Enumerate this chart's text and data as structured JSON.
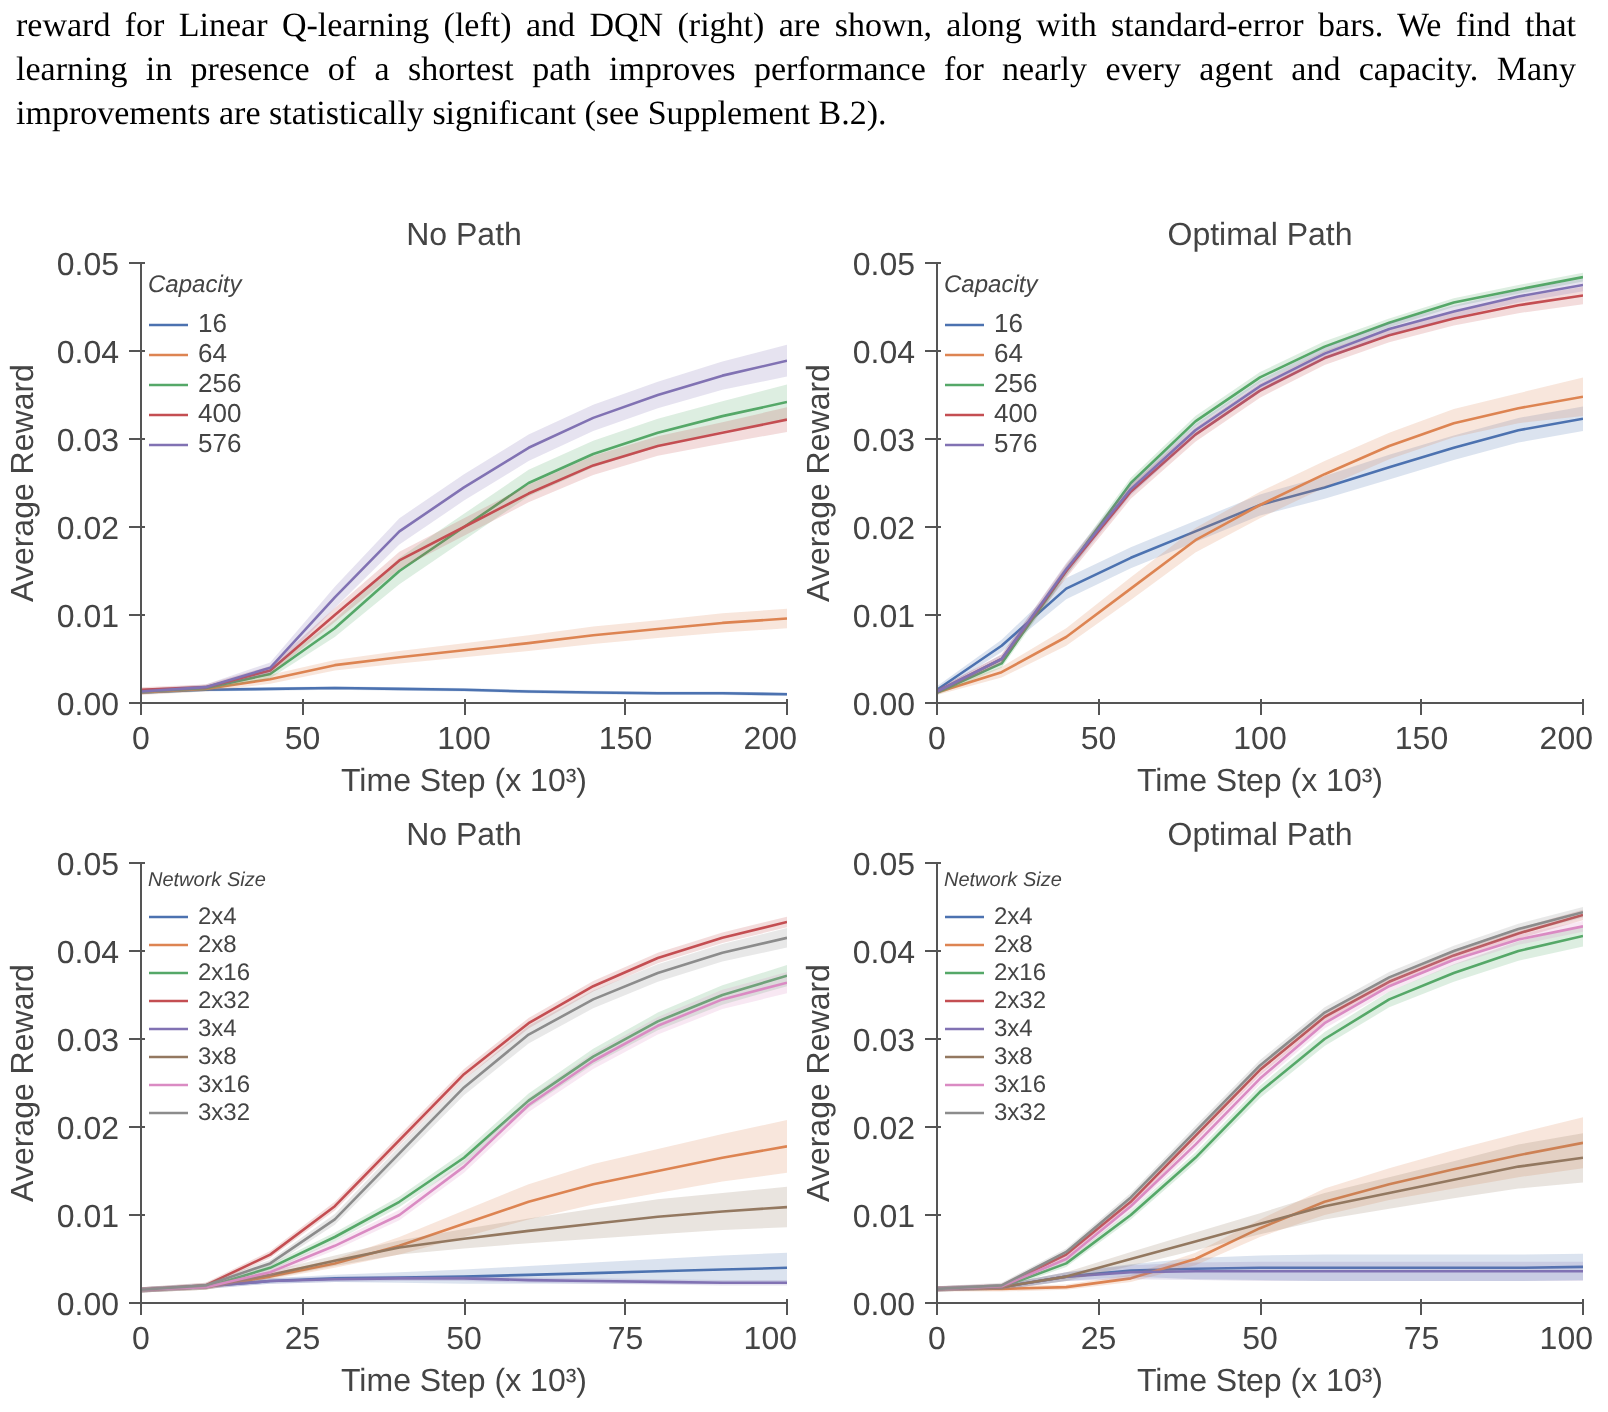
{
  "chart_data": [
    {
      "type": "line",
      "title": "No Path",
      "xlabel": "Time Step (x 10³)",
      "ylabel": "Average Reward",
      "legend_title": "Capacity",
      "legend": "top left",
      "grid": false,
      "annotations": [
        "reward for Linear Q-learning (left) and DQN (right) are shown, along with standard-error bars. We find that learning in presence of a shortest path improves performance for nearly every agent and capacity. Many improvements are statistically significant (see Supplement B.2)."
      ],
      "xlim": [
        0,
        200
      ],
      "ylim": [
        0,
        0.05
      ],
      "xticks": [
        0,
        50,
        100,
        150,
        200
      ],
      "yticks": [
        {
          "value": 0,
          "label": "0.00"
        },
        {
          "value": 0.01,
          "label": "0.01"
        },
        {
          "value": 0.02,
          "label": "0.02"
        },
        {
          "value": 0.03,
          "label": "0.03"
        },
        {
          "value": 0.04,
          "label": "0.04"
        },
        {
          "value": 0.05,
          "label": "0.05"
        }
      ],
      "x": [
        0,
        20,
        40,
        60,
        80,
        100,
        120,
        140,
        160,
        180,
        200
      ],
      "series": [
        {
          "name": "16",
          "color": "#4c72b0",
          "values": [
            0.0012,
            0.0015,
            0.0016,
            0.0017,
            0.0016,
            0.0015,
            0.0013,
            0.0012,
            0.0011,
            0.0011,
            0.001
          ],
          "lower": [
            0.001,
            0.0013,
            0.0014,
            0.0015,
            0.0014,
            0.0013,
            0.0011,
            0.001,
            0.0009,
            0.0009,
            0.0008
          ],
          "upper": [
            0.0014,
            0.0017,
            0.0018,
            0.0019,
            0.0018,
            0.0017,
            0.0015,
            0.0014,
            0.0013,
            0.0013,
            0.0012
          ]
        },
        {
          "name": "64",
          "color": "#dd8452",
          "values": [
            0.0012,
            0.0016,
            0.0027,
            0.0043,
            0.0052,
            0.006,
            0.0068,
            0.0077,
            0.0084,
            0.0091,
            0.0096
          ],
          "lower": [
            0.0009,
            0.0013,
            0.0022,
            0.0037,
            0.0045,
            0.0052,
            0.0059,
            0.0067,
            0.0074,
            0.008,
            0.0085
          ],
          "upper": [
            0.0015,
            0.0019,
            0.0032,
            0.0049,
            0.0059,
            0.0068,
            0.0077,
            0.0087,
            0.0094,
            0.0102,
            0.0107
          ]
        },
        {
          "name": "256",
          "color": "#55a868",
          "values": [
            0.0013,
            0.0017,
            0.0033,
            0.0085,
            0.015,
            0.02,
            0.025,
            0.0283,
            0.0307,
            0.0326,
            0.0342
          ],
          "lower": [
            0.001,
            0.0014,
            0.0028,
            0.0075,
            0.0135,
            0.0185,
            0.0235,
            0.0268,
            0.0291,
            0.0309,
            0.0322
          ],
          "upper": [
            0.0016,
            0.002,
            0.0038,
            0.0095,
            0.0165,
            0.0215,
            0.0265,
            0.0298,
            0.0323,
            0.0343,
            0.0362
          ]
        },
        {
          "name": "400",
          "color": "#c44e52",
          "values": [
            0.0015,
            0.0018,
            0.0037,
            0.01,
            0.0162,
            0.02,
            0.0238,
            0.027,
            0.0292,
            0.0307,
            0.0322
          ],
          "lower": [
            0.0012,
            0.0015,
            0.0032,
            0.0092,
            0.0152,
            0.019,
            0.0228,
            0.0259,
            0.0281,
            0.0295,
            0.0308
          ],
          "upper": [
            0.0018,
            0.0021,
            0.0042,
            0.0108,
            0.0172,
            0.021,
            0.0248,
            0.0281,
            0.0303,
            0.0319,
            0.0336
          ]
        },
        {
          "name": "576",
          "color": "#8172b3",
          "values": [
            0.0013,
            0.0018,
            0.004,
            0.012,
            0.0195,
            0.0245,
            0.029,
            0.0324,
            0.035,
            0.0372,
            0.0389
          ],
          "lower": [
            0.001,
            0.0015,
            0.0034,
            0.0108,
            0.018,
            0.023,
            0.0275,
            0.0309,
            0.0335,
            0.0356,
            0.0371
          ],
          "upper": [
            0.0016,
            0.0021,
            0.0046,
            0.0132,
            0.021,
            0.026,
            0.0305,
            0.0339,
            0.0365,
            0.0388,
            0.0407
          ]
        }
      ]
    },
    {
      "type": "line",
      "title": "Optimal Path",
      "xlabel": "Time Step (x 10³)",
      "ylabel": "Average Reward",
      "legend_title": "Capacity",
      "legend": "top left",
      "grid": false,
      "xlim": [
        0,
        200
      ],
      "ylim": [
        0,
        0.05
      ],
      "xticks": [
        0,
        50,
        100,
        150,
        200
      ],
      "yticks": [
        {
          "value": 0,
          "label": "0.00"
        },
        {
          "value": 0.01,
          "label": "0.01"
        },
        {
          "value": 0.02,
          "label": "0.02"
        },
        {
          "value": 0.03,
          "label": "0.03"
        },
        {
          "value": 0.04,
          "label": "0.04"
        },
        {
          "value": 0.05,
          "label": "0.05"
        }
      ],
      "x": [
        0,
        20,
        40,
        60,
        80,
        100,
        120,
        140,
        160,
        180,
        200
      ],
      "series": [
        {
          "name": "16",
          "color": "#4c72b0",
          "values": [
            0.0015,
            0.0065,
            0.013,
            0.0165,
            0.0195,
            0.0225,
            0.0245,
            0.0268,
            0.029,
            0.031,
            0.0323
          ],
          "lower": [
            0.0011,
            0.0058,
            0.0118,
            0.0153,
            0.0183,
            0.0213,
            0.0232,
            0.0254,
            0.0276,
            0.0296,
            0.0309
          ],
          "upper": [
            0.0019,
            0.0072,
            0.0142,
            0.0177,
            0.0207,
            0.0237,
            0.0258,
            0.0282,
            0.0304,
            0.0324,
            0.0337
          ]
        },
        {
          "name": "64",
          "color": "#dd8452",
          "values": [
            0.0012,
            0.0035,
            0.0075,
            0.013,
            0.0185,
            0.0225,
            0.026,
            0.0292,
            0.0318,
            0.0335,
            0.0348
          ],
          "lower": [
            0.0009,
            0.0029,
            0.0065,
            0.0117,
            0.0171,
            0.021,
            0.0245,
            0.0277,
            0.0302,
            0.0318,
            0.0326
          ],
          "upper": [
            0.0015,
            0.0041,
            0.0085,
            0.0143,
            0.0199,
            0.024,
            0.0275,
            0.0307,
            0.0334,
            0.0352,
            0.037
          ]
        },
        {
          "name": "256",
          "color": "#55a868",
          "values": [
            0.0012,
            0.0045,
            0.015,
            0.025,
            0.032,
            0.037,
            0.0405,
            0.0432,
            0.0455,
            0.047,
            0.0484
          ],
          "lower": [
            0.0009,
            0.004,
            0.0144,
            0.0244,
            0.0314,
            0.0364,
            0.0399,
            0.0427,
            0.045,
            0.0465,
            0.0479
          ],
          "upper": [
            0.0015,
            0.005,
            0.0156,
            0.0256,
            0.0326,
            0.0376,
            0.0411,
            0.0437,
            0.046,
            0.0475,
            0.0489
          ]
        },
        {
          "name": "400",
          "color": "#c44e52",
          "values": [
            0.0013,
            0.005,
            0.015,
            0.024,
            0.0305,
            0.0355,
            0.0392,
            0.0418,
            0.0437,
            0.0452,
            0.0463
          ],
          "lower": [
            0.001,
            0.0045,
            0.0142,
            0.0232,
            0.0297,
            0.0347,
            0.0384,
            0.041,
            0.0429,
            0.0443,
            0.0453
          ],
          "upper": [
            0.0016,
            0.0055,
            0.0158,
            0.0248,
            0.0313,
            0.0363,
            0.04,
            0.0426,
            0.0445,
            0.0461,
            0.0473
          ]
        },
        {
          "name": "576",
          "color": "#8172b3",
          "values": [
            0.0013,
            0.005,
            0.0152,
            0.0243,
            0.031,
            0.036,
            0.0397,
            0.0425,
            0.0445,
            0.0462,
            0.0475
          ],
          "lower": [
            0.001,
            0.0045,
            0.0145,
            0.0236,
            0.0303,
            0.0353,
            0.039,
            0.0418,
            0.0438,
            0.0455,
            0.0468
          ],
          "upper": [
            0.0016,
            0.0055,
            0.0159,
            0.025,
            0.0317,
            0.0367,
            0.0404,
            0.0432,
            0.0452,
            0.0469,
            0.0482
          ]
        }
      ]
    },
    {
      "type": "line",
      "title": "No Path",
      "xlabel": "Time Step (x 10³)",
      "ylabel": "Average Reward",
      "legend_title": "Network Size",
      "legend": "top left",
      "grid": false,
      "xlim": [
        0,
        100
      ],
      "ylim": [
        0,
        0.05
      ],
      "xticks": [
        0,
        25,
        50,
        75,
        100
      ],
      "yticks": [
        {
          "value": 0,
          "label": "0.00"
        },
        {
          "value": 0.01,
          "label": "0.01"
        },
        {
          "value": 0.02,
          "label": "0.02"
        },
        {
          "value": 0.03,
          "label": "0.03"
        },
        {
          "value": 0.04,
          "label": "0.04"
        },
        {
          "value": 0.05,
          "label": "0.05"
        }
      ],
      "x": [
        0,
        10,
        20,
        30,
        40,
        50,
        60,
        70,
        80,
        90,
        100
      ],
      "series": [
        {
          "name": "2x4",
          "color": "#4c72b0",
          "values": [
            0.0015,
            0.0019,
            0.0025,
            0.0028,
            0.0029,
            0.003,
            0.0032,
            0.0034,
            0.0036,
            0.0038,
            0.004
          ],
          "lower": [
            0.0012,
            0.0016,
            0.0022,
            0.0024,
            0.0023,
            0.0022,
            0.0022,
            0.0022,
            0.0022,
            0.0022,
            0.0023
          ],
          "upper": [
            0.0018,
            0.0022,
            0.0028,
            0.0032,
            0.0035,
            0.0038,
            0.0042,
            0.0046,
            0.005,
            0.0054,
            0.0057
          ]
        },
        {
          "name": "2x8",
          "color": "#dd8452",
          "values": [
            0.0015,
            0.0018,
            0.003,
            0.0045,
            0.0065,
            0.009,
            0.0115,
            0.0135,
            0.015,
            0.0165,
            0.0178
          ],
          "lower": [
            0.0012,
            0.0015,
            0.0027,
            0.004,
            0.0055,
            0.0075,
            0.0095,
            0.0112,
            0.0125,
            0.0138,
            0.0148
          ],
          "upper": [
            0.0018,
            0.0021,
            0.0033,
            0.005,
            0.0075,
            0.0105,
            0.0135,
            0.0158,
            0.0175,
            0.0192,
            0.0208
          ]
        },
        {
          "name": "2x16",
          "color": "#55a868",
          "values": [
            0.0015,
            0.0018,
            0.004,
            0.0075,
            0.0115,
            0.0165,
            0.023,
            0.028,
            0.032,
            0.035,
            0.0372
          ],
          "lower": [
            0.0012,
            0.0015,
            0.0036,
            0.007,
            0.0109,
            0.0158,
            0.0222,
            0.0271,
            0.031,
            0.0339,
            0.036
          ],
          "upper": [
            0.0018,
            0.0021,
            0.0044,
            0.008,
            0.0121,
            0.0172,
            0.0238,
            0.0289,
            0.033,
            0.0361,
            0.0384
          ]
        },
        {
          "name": "2x32",
          "color": "#c44e52",
          "values": [
            0.0015,
            0.002,
            0.0055,
            0.011,
            0.0185,
            0.026,
            0.0318,
            0.036,
            0.0392,
            0.0415,
            0.0433
          ],
          "lower": [
            0.0012,
            0.0017,
            0.0051,
            0.0105,
            0.0179,
            0.0254,
            0.0312,
            0.0354,
            0.0386,
            0.0409,
            0.0427
          ],
          "upper": [
            0.0018,
            0.0023,
            0.0059,
            0.0115,
            0.0191,
            0.0266,
            0.0324,
            0.0366,
            0.0398,
            0.0421,
            0.0439
          ]
        },
        {
          "name": "3x4",
          "color": "#8172b3",
          "values": [
            0.0015,
            0.0019,
            0.0025,
            0.0027,
            0.0028,
            0.0028,
            0.0026,
            0.0025,
            0.0024,
            0.0023,
            0.0023
          ],
          "lower": [
            0.0012,
            0.0016,
            0.0022,
            0.0024,
            0.0025,
            0.0025,
            0.0023,
            0.0022,
            0.0021,
            0.002,
            0.002
          ],
          "upper": [
            0.0018,
            0.0022,
            0.0028,
            0.003,
            0.0031,
            0.0031,
            0.0029,
            0.0028,
            0.0027,
            0.0026,
            0.0026
          ]
        },
        {
          "name": "3x8",
          "color": "#937860",
          "values": [
            0.0015,
            0.0018,
            0.0032,
            0.0048,
            0.0063,
            0.0073,
            0.0082,
            0.009,
            0.0098,
            0.0104,
            0.0109
          ],
          "lower": [
            0.0012,
            0.0015,
            0.0028,
            0.0042,
            0.0055,
            0.0062,
            0.0068,
            0.0073,
            0.0078,
            0.0083,
            0.0086
          ],
          "upper": [
            0.0018,
            0.0021,
            0.0036,
            0.0054,
            0.0071,
            0.0084,
            0.0096,
            0.0107,
            0.0118,
            0.0125,
            0.0132
          ]
        },
        {
          "name": "3x16",
          "color": "#da8bc3",
          "values": [
            0.0015,
            0.0018,
            0.0035,
            0.0065,
            0.01,
            0.0155,
            0.0225,
            0.0275,
            0.0315,
            0.0345,
            0.0364
          ],
          "lower": [
            0.0012,
            0.0015,
            0.0031,
            0.006,
            0.0094,
            0.0148,
            0.0217,
            0.0266,
            0.0305,
            0.0334,
            0.0352
          ],
          "upper": [
            0.0018,
            0.0021,
            0.0039,
            0.007,
            0.0106,
            0.0162,
            0.0233,
            0.0284,
            0.0325,
            0.0356,
            0.0376
          ]
        },
        {
          "name": "3x32",
          "color": "#8c8c8c",
          "values": [
            0.0015,
            0.002,
            0.0045,
            0.0095,
            0.017,
            0.0245,
            0.0305,
            0.0345,
            0.0375,
            0.0398,
            0.0415
          ],
          "lower": [
            0.0012,
            0.0017,
            0.0041,
            0.0089,
            0.0162,
            0.0236,
            0.0295,
            0.0335,
            0.0365,
            0.0388,
            0.0404
          ],
          "upper": [
            0.0018,
            0.0023,
            0.0049,
            0.0101,
            0.0178,
            0.0254,
            0.0315,
            0.0355,
            0.0385,
            0.0408,
            0.0426
          ]
        }
      ]
    },
    {
      "type": "line",
      "title": "Optimal Path",
      "xlabel": "Time Step (x 10³)",
      "ylabel": "Average Reward",
      "legend_title": "Network Size",
      "legend": "top left",
      "grid": false,
      "xlim": [
        0,
        100
      ],
      "ylim": [
        0,
        0.05
      ],
      "xticks": [
        0,
        25,
        50,
        75,
        100
      ],
      "yticks": [
        {
          "value": 0,
          "label": "0.00"
        },
        {
          "value": 0.01,
          "label": "0.01"
        },
        {
          "value": 0.02,
          "label": "0.02"
        },
        {
          "value": 0.03,
          "label": "0.03"
        },
        {
          "value": 0.04,
          "label": "0.04"
        },
        {
          "value": 0.05,
          "label": "0.05"
        }
      ],
      "x": [
        0,
        10,
        20,
        30,
        40,
        50,
        60,
        70,
        80,
        90,
        100
      ],
      "series": [
        {
          "name": "2x4",
          "color": "#4c72b0",
          "values": [
            0.0016,
            0.0018,
            0.003,
            0.0037,
            0.0039,
            0.004,
            0.004,
            0.004,
            0.004,
            0.004,
            0.0041
          ],
          "lower": [
            0.0013,
            0.0015,
            0.0025,
            0.003,
            0.0027,
            0.0026,
            0.0025,
            0.0025,
            0.0025,
            0.0025,
            0.0026
          ],
          "upper": [
            0.0019,
            0.0021,
            0.0035,
            0.0044,
            0.0051,
            0.0054,
            0.0055,
            0.0055,
            0.0055,
            0.0055,
            0.0056
          ]
        },
        {
          "name": "2x8",
          "color": "#dd8452",
          "values": [
            0.0016,
            0.0016,
            0.0018,
            0.0028,
            0.005,
            0.0085,
            0.0115,
            0.0135,
            0.0152,
            0.0168,
            0.0182
          ],
          "lower": [
            0.0013,
            0.0013,
            0.0015,
            0.0024,
            0.0043,
            0.0075,
            0.01,
            0.0117,
            0.013,
            0.0143,
            0.0153
          ],
          "upper": [
            0.0019,
            0.0019,
            0.0021,
            0.0032,
            0.0057,
            0.0095,
            0.013,
            0.0153,
            0.0174,
            0.0193,
            0.0211
          ]
        },
        {
          "name": "2x16",
          "color": "#55a868",
          "values": [
            0.0016,
            0.0018,
            0.0045,
            0.01,
            0.0165,
            0.024,
            0.03,
            0.0345,
            0.0375,
            0.04,
            0.0417
          ],
          "lower": [
            0.0013,
            0.0015,
            0.0041,
            0.0095,
            0.0159,
            0.0233,
            0.0292,
            0.0336,
            0.0365,
            0.0389,
            0.0405
          ],
          "upper": [
            0.0019,
            0.0021,
            0.0049,
            0.0105,
            0.0171,
            0.0247,
            0.0308,
            0.0354,
            0.0385,
            0.0411,
            0.0429
          ]
        },
        {
          "name": "2x32",
          "color": "#c44e52",
          "values": [
            0.0016,
            0.0019,
            0.0055,
            0.0115,
            0.019,
            0.0265,
            0.0325,
            0.0365,
            0.0395,
            0.042,
            0.0441
          ],
          "lower": [
            0.0013,
            0.0016,
            0.0051,
            0.011,
            0.0184,
            0.0259,
            0.0319,
            0.0359,
            0.0389,
            0.0414,
            0.0435
          ],
          "upper": [
            0.0019,
            0.0022,
            0.0059,
            0.012,
            0.0196,
            0.0271,
            0.0331,
            0.0371,
            0.0401,
            0.0426,
            0.0447
          ]
        },
        {
          "name": "3x4",
          "color": "#8172b3",
          "values": [
            0.0016,
            0.0018,
            0.003,
            0.0035,
            0.0036,
            0.0036,
            0.0036,
            0.0036,
            0.0036,
            0.0036,
            0.0036
          ],
          "lower": [
            0.0013,
            0.0015,
            0.0025,
            0.0027,
            0.0026,
            0.0025,
            0.0025,
            0.0025,
            0.0025,
            0.0025,
            0.0025
          ],
          "upper": [
            0.0019,
            0.0021,
            0.0035,
            0.0043,
            0.0046,
            0.0047,
            0.0047,
            0.0047,
            0.0047,
            0.0047,
            0.0047
          ]
        },
        {
          "name": "3x8",
          "color": "#937860",
          "values": [
            0.0016,
            0.0018,
            0.003,
            0.005,
            0.007,
            0.009,
            0.011,
            0.0125,
            0.014,
            0.0155,
            0.0165
          ],
          "lower": [
            0.0013,
            0.0015,
            0.0025,
            0.0042,
            0.006,
            0.0078,
            0.0095,
            0.0107,
            0.0119,
            0.013,
            0.0137
          ],
          "upper": [
            0.0019,
            0.0021,
            0.0035,
            0.0058,
            0.008,
            0.0102,
            0.0125,
            0.0143,
            0.0161,
            0.018,
            0.0193
          ]
        },
        {
          "name": "3x16",
          "color": "#da8bc3",
          "values": [
            0.0016,
            0.0019,
            0.005,
            0.011,
            0.018,
            0.0255,
            0.0318,
            0.036,
            0.039,
            0.0413,
            0.0428
          ],
          "lower": [
            0.0013,
            0.0016,
            0.0046,
            0.0105,
            0.0174,
            0.0249,
            0.0312,
            0.0354,
            0.0384,
            0.0407,
            0.0422
          ],
          "upper": [
            0.0019,
            0.0022,
            0.0054,
            0.0115,
            0.0186,
            0.0261,
            0.0324,
            0.0366,
            0.0396,
            0.0419,
            0.0434
          ]
        },
        {
          "name": "3x32",
          "color": "#8c8c8c",
          "values": [
            0.0016,
            0.002,
            0.0058,
            0.012,
            0.0195,
            0.027,
            0.033,
            0.037,
            0.04,
            0.0425,
            0.0444
          ],
          "lower": [
            0.0013,
            0.0017,
            0.0054,
            0.0115,
            0.0189,
            0.0264,
            0.0324,
            0.0364,
            0.0394,
            0.0419,
            0.0438
          ],
          "upper": [
            0.0019,
            0.0023,
            0.0062,
            0.0125,
            0.0201,
            0.0276,
            0.0336,
            0.0376,
            0.0406,
            0.0431,
            0.045
          ]
        }
      ]
    }
  ]
}
